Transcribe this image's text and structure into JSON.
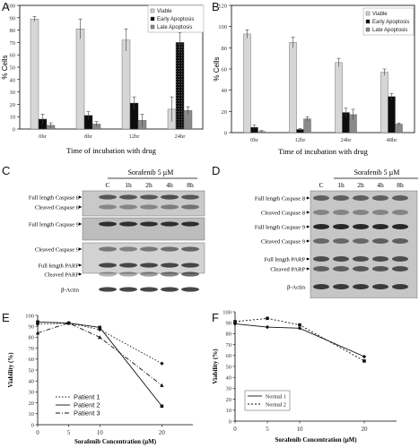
{
  "panels": {
    "A": {
      "letter": "A"
    },
    "B": {
      "letter": "B"
    },
    "C": {
      "letter": "C"
    },
    "D": {
      "letter": "D"
    },
    "E": {
      "letter": "E"
    },
    "F": {
      "letter": "F"
    }
  },
  "blots": {
    "C": {
      "treatment": "Sorafenib 5 µM",
      "lanes": [
        "C",
        "1h",
        "2h",
        "4h",
        "8h"
      ],
      "bands": [
        "Full length Caspase 8",
        "Cleaved Caspase 8",
        "Full length Caspase 9",
        "Cleaved Caspase 9",
        "Full length PARP",
        "Cleaved PARP",
        "β-Actin"
      ]
    },
    "D": {
      "treatment": "Sorafenib 5 µM",
      "lanes": [
        "C",
        "1h",
        "2h",
        "4h",
        "8h"
      ],
      "bands": [
        "Full length Caspase 8",
        "Cleaved Caspase 8",
        "Full length Caspase 9",
        "Cleaved Caspase 9",
        "Full length PARP",
        "Cleaved PARP",
        "β-Actin"
      ]
    }
  },
  "chart_data": [
    {
      "panel": "A",
      "type": "bar",
      "xlabel": "Time of incubation with drug",
      "ylabel": "% Cells",
      "ylim": [
        0,
        100
      ],
      "yticks": [
        0,
        10,
        20,
        30,
        40,
        50,
        60,
        70,
        80,
        90,
        100
      ],
      "categories": [
        "0hr",
        "8hr",
        "12hr",
        "24hr"
      ],
      "legend_position": "top-right",
      "series": [
        {
          "name": "Viable",
          "values": [
            89,
            81,
            72,
            16
          ],
          "errors": [
            2,
            8,
            9,
            10
          ],
          "color": "#d4d4d4"
        },
        {
          "name": "Early Apoptosis",
          "values": [
            8,
            11,
            21,
            70
          ],
          "errors": [
            4,
            3,
            5,
            8
          ],
          "color": "#0d0d0d"
        },
        {
          "name": "Late Apoptosis",
          "values": [
            3,
            4,
            7,
            15
          ],
          "errors": [
            2,
            2,
            5,
            3
          ],
          "color": "#8a8a8a"
        }
      ]
    },
    {
      "panel": "B",
      "type": "bar",
      "xlabel": "Time of incubation with drug",
      "ylabel": "% Cells",
      "ylim": [
        0,
        120
      ],
      "yticks": [
        0,
        20,
        40,
        60,
        80,
        100,
        120
      ],
      "categories": [
        "0hr",
        "12hr",
        "24hr",
        "48hr"
      ],
      "legend_position": "top-right",
      "series": [
        {
          "name": "Viable",
          "values": [
            93,
            85,
            66,
            57
          ],
          "errors": [
            4,
            5,
            4,
            3
          ],
          "color": "#d4d4d4"
        },
        {
          "name": "Early Apoptosis",
          "values": [
            5,
            3,
            19,
            34
          ],
          "errors": [
            2,
            1,
            4,
            3
          ],
          "color": "#0d0d0d"
        },
        {
          "name": "Late Apoptosis",
          "values": [
            1,
            13,
            17,
            8
          ],
          "errors": [
            1,
            2,
            5,
            1
          ],
          "color": "#8a8a8a"
        }
      ]
    },
    {
      "panel": "E",
      "type": "line",
      "xlabel": "Sorafenib Concentration (μM)",
      "ylabel": "Viability (%)",
      "ylim": [
        0,
        100
      ],
      "yticks": [
        0,
        10,
        20,
        30,
        40,
        50,
        60,
        70,
        80,
        90,
        100
      ],
      "x": [
        0,
        5,
        10,
        20
      ],
      "legend_position": "bottom-left",
      "series": [
        {
          "name": "Patient 1",
          "values": [
            92,
            93,
            87,
            56
          ],
          "dash": "1.5 2",
          "marker": "diamond"
        },
        {
          "name": "Patient 2",
          "values": [
            94,
            93,
            89,
            17
          ],
          "dash": "",
          "marker": "square"
        },
        {
          "name": "Patient 3",
          "values": [
            84,
            93,
            80,
            36
          ],
          "dash": "5 2 1 2",
          "marker": "triangle"
        }
      ]
    },
    {
      "panel": "F",
      "type": "line",
      "xlabel": "Sorafenib Concentration (μM)",
      "ylabel": "Viability (%)",
      "ylim": [
        0,
        100
      ],
      "yticks": [
        0,
        10,
        20,
        30,
        40,
        50,
        60,
        70,
        80,
        90,
        100
      ],
      "x": [
        0,
        5,
        10,
        20
      ],
      "legend_position": "bottom-left",
      "series": [
        {
          "name": "Normal 1",
          "values": [
            89,
            86,
            85,
            59
          ],
          "dash": "",
          "marker": "diamond"
        },
        {
          "name": "Normal 2",
          "values": [
            91,
            94,
            88,
            55
          ],
          "dash": "2 2",
          "marker": "square"
        }
      ]
    }
  ]
}
